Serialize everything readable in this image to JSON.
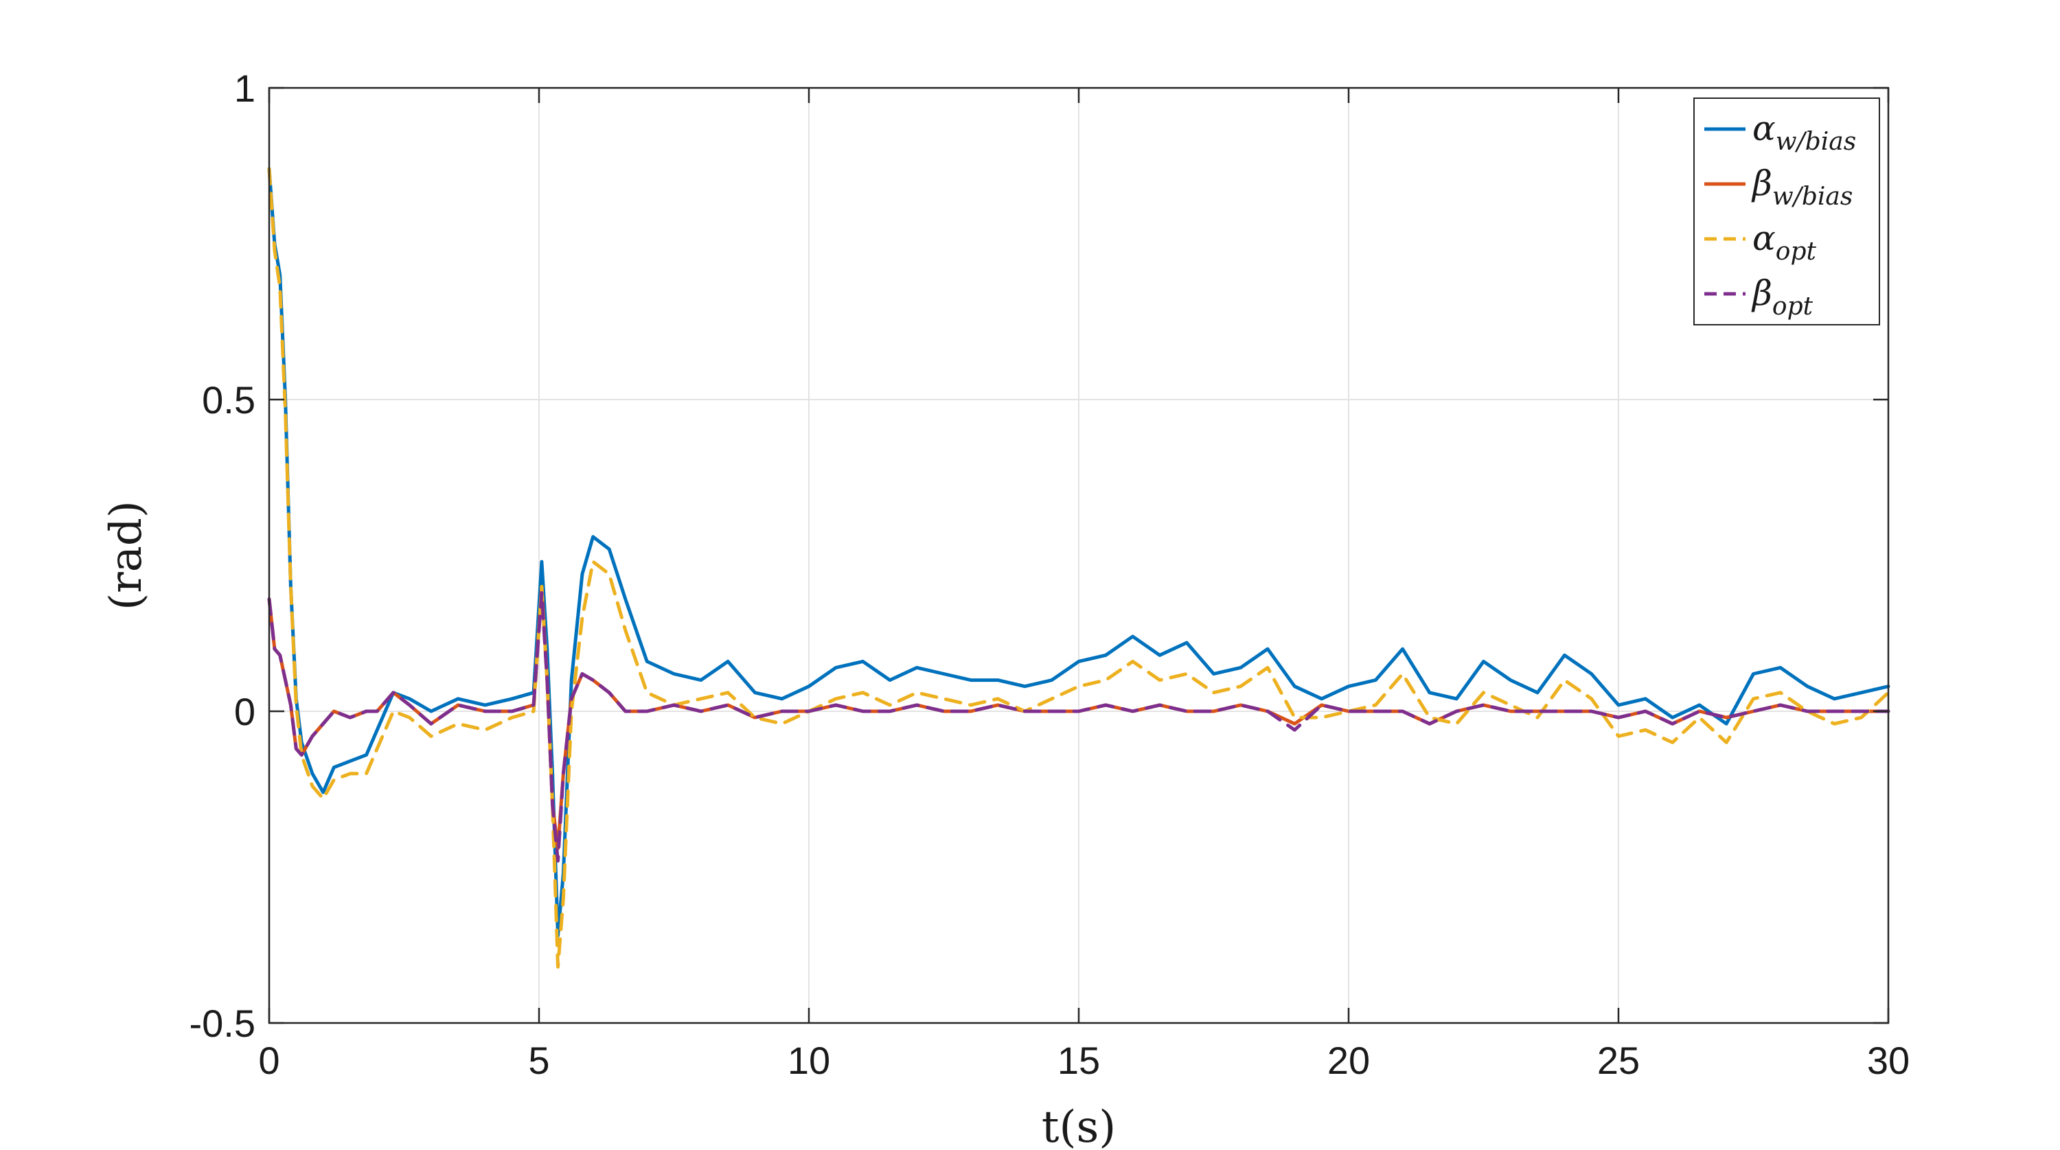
{
  "chart_data": {
    "type": "line",
    "title": "",
    "xlabel": "t(s)",
    "ylabel": "(rad)",
    "xlim": [
      0,
      30
    ],
    "ylim": [
      -0.5,
      1
    ],
    "xticks": [
      "0",
      "5",
      "10",
      "15",
      "20",
      "25",
      "30"
    ],
    "yticks": [
      "-0.5",
      "0",
      "0.5",
      "1"
    ],
    "grid": true,
    "legend_position": "top-right",
    "x": [
      0,
      0.1,
      0.2,
      0.3,
      0.4,
      0.5,
      0.6,
      0.8,
      1.0,
      1.2,
      1.5,
      1.8,
      2.0,
      2.3,
      2.6,
      3.0,
      3.5,
      4.0,
      4.5,
      4.9,
      5.05,
      5.15,
      5.25,
      5.35,
      5.45,
      5.6,
      5.8,
      6.0,
      6.3,
      6.6,
      7.0,
      7.5,
      8.0,
      8.5,
      9.0,
      9.5,
      10.0,
      10.5,
      11.0,
      11.5,
      12.0,
      12.5,
      13.0,
      13.5,
      14.0,
      14.5,
      15.0,
      15.5,
      16.0,
      16.5,
      17.0,
      17.5,
      18.0,
      18.5,
      19.0,
      19.5,
      20.0,
      20.5,
      21.0,
      21.5,
      22.0,
      22.5,
      23.0,
      23.5,
      24.0,
      24.5,
      25.0,
      25.5,
      26.0,
      26.5,
      27.0,
      27.5,
      28.0,
      28.5,
      29.0,
      29.5,
      30.0
    ],
    "series": [
      {
        "name": "α_w/bias",
        "color": "#0072BD",
        "dash": "solid",
        "values": [
          0.87,
          0.75,
          0.7,
          0.5,
          0.2,
          0.02,
          -0.05,
          -0.1,
          -0.13,
          -0.09,
          -0.08,
          -0.07,
          -0.03,
          0.03,
          0.02,
          0.0,
          0.02,
          0.01,
          0.02,
          0.03,
          0.24,
          0.1,
          -0.1,
          -0.36,
          -0.26,
          0.05,
          0.22,
          0.28,
          0.26,
          0.18,
          0.08,
          0.06,
          0.05,
          0.08,
          0.03,
          0.02,
          0.04,
          0.07,
          0.08,
          0.05,
          0.07,
          0.06,
          0.05,
          0.05,
          0.04,
          0.05,
          0.08,
          0.09,
          0.12,
          0.09,
          0.11,
          0.06,
          0.07,
          0.1,
          0.04,
          0.02,
          0.04,
          0.05,
          0.1,
          0.03,
          0.02,
          0.08,
          0.05,
          0.03,
          0.09,
          0.06,
          0.01,
          0.02,
          -0.01,
          0.01,
          -0.02,
          0.06,
          0.07,
          0.04,
          0.02,
          0.03,
          0.04
        ]
      },
      {
        "name": "β_w/bias",
        "color": "#D95319",
        "dash": "solid",
        "values": [
          0.18,
          0.1,
          0.09,
          0.05,
          0.01,
          -0.06,
          -0.07,
          -0.04,
          -0.02,
          0.0,
          -0.01,
          0.0,
          0.0,
          0.03,
          0.01,
          -0.02,
          0.01,
          0.0,
          0.0,
          0.01,
          0.2,
          0.05,
          -0.15,
          -0.22,
          -0.1,
          0.02,
          0.06,
          0.05,
          0.03,
          0.0,
          0.0,
          0.01,
          0.0,
          0.01,
          -0.01,
          0.0,
          0.0,
          0.01,
          0.0,
          0.0,
          0.01,
          0.0,
          0.0,
          0.01,
          0.0,
          0.0,
          0.0,
          0.01,
          0.0,
          0.01,
          0.0,
          0.0,
          0.01,
          0.0,
          -0.02,
          0.01,
          0.0,
          0.0,
          0.0,
          -0.02,
          0.0,
          0.01,
          0.0,
          0.0,
          0.0,
          0.0,
          -0.01,
          0.0,
          -0.02,
          0.0,
          -0.01,
          0.0,
          0.01,
          0.0,
          0.0,
          0.0,
          0.0
        ]
      },
      {
        "name": "α_opt",
        "color": "#EDB120",
        "dash": "dashed",
        "values": [
          0.87,
          0.74,
          0.68,
          0.48,
          0.2,
          0.01,
          -0.07,
          -0.12,
          -0.14,
          -0.11,
          -0.1,
          -0.1,
          -0.06,
          0.0,
          -0.01,
          -0.04,
          -0.02,
          -0.03,
          -0.01,
          0.0,
          0.2,
          0.05,
          -0.15,
          -0.41,
          -0.3,
          0.0,
          0.15,
          0.24,
          0.22,
          0.13,
          0.03,
          0.01,
          0.02,
          0.03,
          -0.01,
          -0.02,
          0.0,
          0.02,
          0.03,
          0.01,
          0.03,
          0.02,
          0.01,
          0.02,
          0.0,
          0.02,
          0.04,
          0.05,
          0.08,
          0.05,
          0.06,
          0.03,
          0.04,
          0.07,
          -0.01,
          -0.01,
          0.0,
          0.01,
          0.06,
          -0.01,
          -0.02,
          0.03,
          0.01,
          -0.01,
          0.05,
          0.02,
          -0.04,
          -0.03,
          -0.05,
          -0.01,
          -0.05,
          0.02,
          0.03,
          0.0,
          -0.02,
          -0.01,
          0.03
        ]
      },
      {
        "name": "β_opt",
        "color": "#7E2F8E",
        "dash": "dashed",
        "values": [
          0.18,
          0.1,
          0.09,
          0.05,
          0.01,
          -0.06,
          -0.07,
          -0.04,
          -0.02,
          0.0,
          -0.01,
          0.0,
          0.0,
          0.03,
          0.01,
          -0.02,
          0.01,
          0.0,
          0.0,
          0.01,
          0.19,
          0.05,
          -0.15,
          -0.24,
          -0.1,
          0.02,
          0.06,
          0.05,
          0.03,
          0.0,
          0.0,
          0.01,
          0.0,
          0.01,
          -0.01,
          0.0,
          0.0,
          0.01,
          0.0,
          0.0,
          0.01,
          0.0,
          0.0,
          0.01,
          0.0,
          0.0,
          0.0,
          0.01,
          0.0,
          0.01,
          0.0,
          0.0,
          0.01,
          0.0,
          -0.03,
          0.01,
          0.0,
          0.0,
          0.0,
          -0.02,
          0.0,
          0.01,
          0.0,
          0.0,
          0.0,
          0.0,
          -0.01,
          0.0,
          -0.02,
          0.0,
          -0.01,
          0.0,
          0.01,
          0.0,
          0.0,
          0.0,
          0.0
        ]
      }
    ],
    "legend": [
      {
        "symbol": "α",
        "sub": "w/bias"
      },
      {
        "symbol": "β",
        "sub": "w/bias"
      },
      {
        "symbol": "α",
        "sub": "opt"
      },
      {
        "symbol": "β",
        "sub": "opt"
      }
    ]
  }
}
